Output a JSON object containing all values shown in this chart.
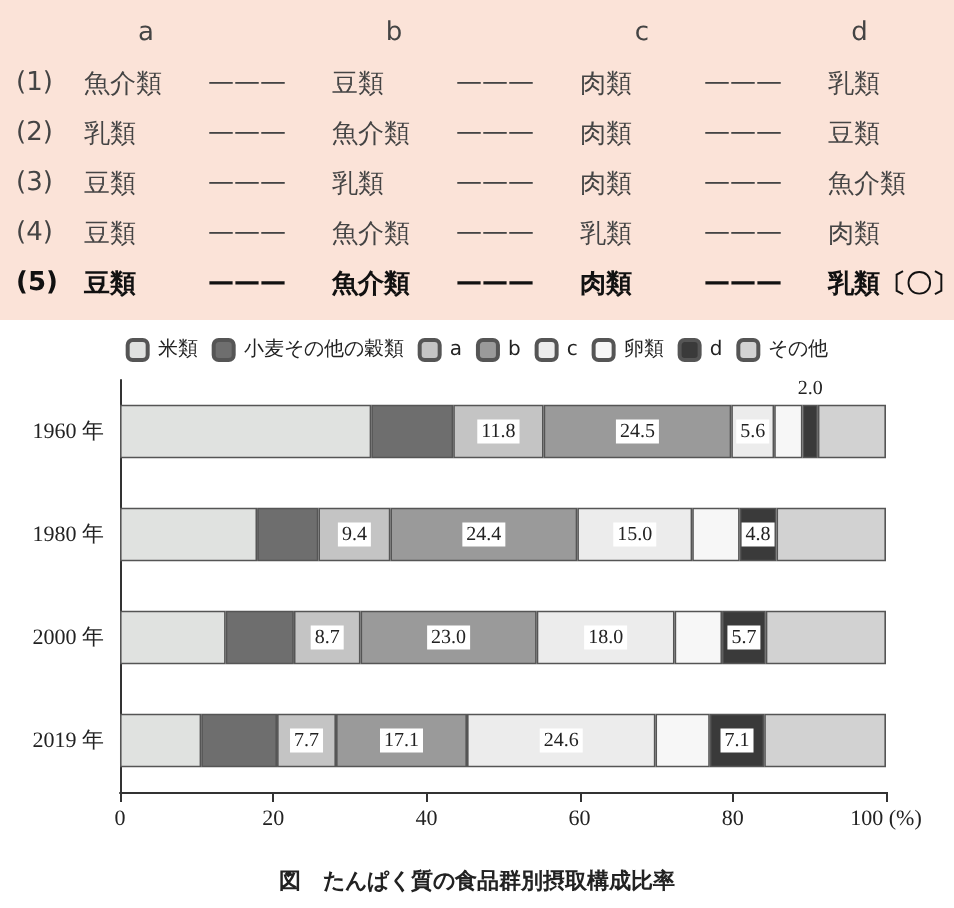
{
  "chart_data": {
    "type": "bar",
    "orientation": "horizontal",
    "stacked": true,
    "annotations": [
      "a b c d",
      "(1) 魚介類 ——— 豆類 ——— 肉類 ——— 乳類",
      "(2) 乳類 ——— 魚介類 ——— 肉類 ——— 豆類",
      "(3) 豆類 ——— 乳類 ——— 肉類 ——— 魚介類",
      "(4) 豆類 ——— 魚介類 ——— 乳類 ——— 肉類",
      "(5) 豆類 ——— 魚介類 ——— 肉類 ——— 乳類 〔〇〕",
      "図　たんぱく質の食品群別摂取構成比率"
    ],
    "categories": [
      "1960 年",
      "1980 年",
      "2000 年",
      "2019 年"
    ],
    "series": [
      {
        "name": "米類",
        "color": "#e0e2e0",
        "values": [
          32.8,
          17.9,
          13.8,
          10.6
        ]
      },
      {
        "name": "小麦その他の穀類",
        "color": "#6e6e6e",
        "values": [
          10.7,
          8.0,
          8.9,
          9.9
        ]
      },
      {
        "name": "a",
        "color": "#c4c4c4",
        "values": [
          11.8,
          9.4,
          8.7,
          7.7
        ],
        "value_labels": [
          "11.8",
          "9.4",
          "8.7",
          "7.7"
        ]
      },
      {
        "name": "b",
        "color": "#9a9a9a",
        "values": [
          24.5,
          24.4,
          23.0,
          17.1
        ],
        "value_labels": [
          "24.5",
          "24.4",
          "23.0",
          "17.1"
        ]
      },
      {
        "name": "c",
        "color": "#ececec",
        "values": [
          5.6,
          15.0,
          18.0,
          24.6
        ],
        "value_labels": [
          "5.6",
          "15.0",
          "18.0",
          "24.6"
        ]
      },
      {
        "name": "卵類",
        "color": "#f7f7f7",
        "values": [
          3.7,
          6.2,
          6.2,
          7.1
        ]
      },
      {
        "name": "d",
        "color": "#3a3a3a",
        "values": [
          2.0,
          4.8,
          5.7,
          7.1
        ],
        "value_labels": [
          "2.0",
          "4.8",
          "5.7",
          "7.1"
        ]
      },
      {
        "name": "その他",
        "color": "#d2d2d2",
        "values": [
          8.9,
          14.3,
          15.7,
          15.9
        ]
      }
    ],
    "xlim": [
      0,
      100
    ],
    "xticks": [
      0,
      20,
      40,
      60,
      80,
      {
        "value": 100,
        "label": "100 (%)"
      }
    ],
    "legend": "top",
    "grid": false
  }
}
